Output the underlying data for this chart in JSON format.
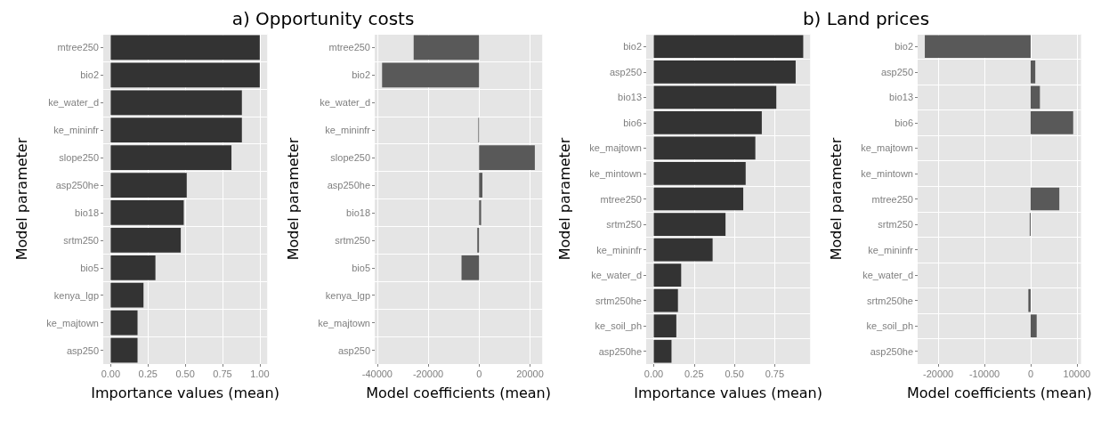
{
  "chart_data": [
    {
      "type": "bar",
      "orientation": "horizontal",
      "title": "a) Opportunity costs",
      "xlabel": "Importance values (mean)",
      "ylabel": "Model parameter",
      "grid": true,
      "color": "#333333",
      "categories": [
        "mtree250",
        "bio2",
        "ke_water_d",
        "ke_mininfr",
        "slope250",
        "asp250he",
        "bio18",
        "srtm250",
        "bio5",
        "kenya_lgp",
        "ke_majtown",
        "asp250"
      ],
      "values": [
        1.0,
        1.0,
        0.88,
        0.88,
        0.81,
        0.51,
        0.49,
        0.47,
        0.3,
        0.22,
        0.18,
        0.18
      ],
      "xlim": [
        -0.05,
        1.05
      ],
      "xticks": [
        {
          "value": 0,
          "label": "0.00"
        },
        0.25,
        {
          "value": 0.5,
          "label": "0.50"
        },
        0.75,
        {
          "value": 1,
          "label": "1.00"
        }
      ]
    },
    {
      "type": "bar",
      "orientation": "horizontal",
      "xlabel": "Model coefficients (mean)",
      "ylabel": "Model parameter",
      "grid": true,
      "color": "#595959",
      "categories": [
        "mtree250",
        "bio2",
        "ke_water_d",
        "ke_mininfr",
        "slope250",
        "asp250he",
        "bio18",
        "srtm250",
        "bio5",
        "kenya_lgp",
        "ke_majtown",
        "asp250"
      ],
      "values": [
        -25700,
        -38100,
        0,
        -300,
        21900,
        1300,
        800,
        -700,
        -6900,
        0,
        0,
        0
      ],
      "xlim": [
        -41000,
        24800
      ],
      "xticks": [
        -40000,
        -20000,
        0,
        20000
      ]
    },
    {
      "type": "bar",
      "orientation": "horizontal",
      "title": "b) Land prices",
      "xlabel": "Importance values (mean)",
      "ylabel": "Model parameter",
      "grid": true,
      "color": "#333333",
      "categories": [
        "bio2",
        "asp250",
        "bio13",
        "bio6",
        "ke_majtown",
        "ke_mintown",
        "mtree250",
        "srtm250",
        "ke_mininfr",
        "ke_water_d",
        "srtm250he",
        "ke_soil_ph",
        "asp250he"
      ],
      "values": [
        0.927,
        0.88,
        0.76,
        0.67,
        0.63,
        0.57,
        0.555,
        0.445,
        0.365,
        0.17,
        0.15,
        0.14,
        0.11
      ],
      "xlim": [
        -0.047,
        0.97
      ],
      "xticks": [
        {
          "value": 0,
          "label": "0.00"
        },
        0.25,
        {
          "value": 0.5,
          "label": "0.50"
        },
        0.75
      ]
    },
    {
      "type": "bar",
      "orientation": "horizontal",
      "xlabel": "Model coefficients (mean)",
      "ylabel": "Model parameter",
      "grid": true,
      "color": "#595959",
      "categories": [
        "bio2",
        "asp250",
        "bio13",
        "bio6",
        "ke_majtown",
        "ke_mintown",
        "mtree250",
        "srtm250",
        "ke_mininfr",
        "ke_water_d",
        "srtm250he",
        "ke_soil_ph",
        "asp250he"
      ],
      "values": [
        -22900,
        1000,
        2000,
        9200,
        0,
        0,
        6200,
        -200,
        0,
        0,
        -500,
        1300,
        0
      ],
      "xlim": [
        -24450,
        10900
      ],
      "xticks": [
        -20000,
        -10000,
        0,
        10000
      ]
    }
  ]
}
